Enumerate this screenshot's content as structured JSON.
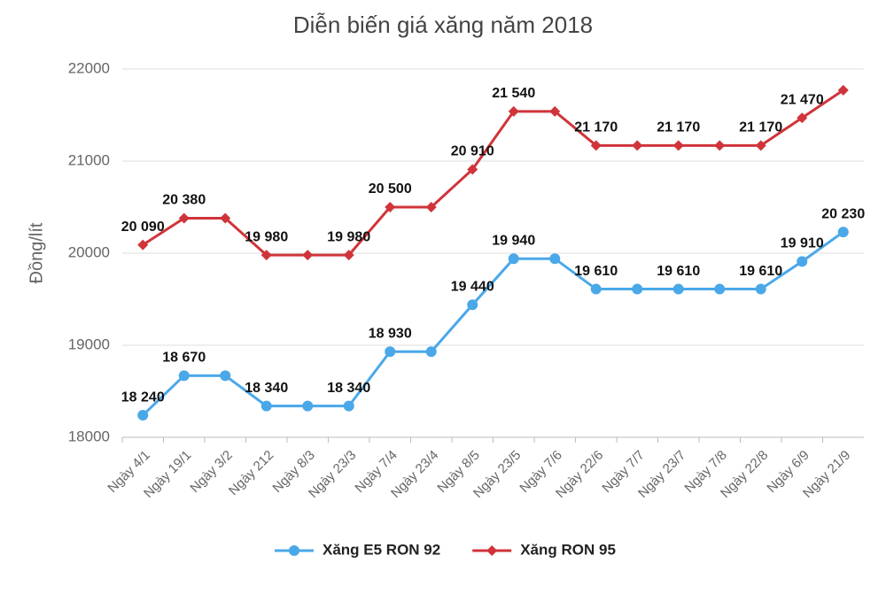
{
  "chart_data": {
    "type": "line",
    "title": "Diễn biến giá xăng năm 2018",
    "y_label": "Đồng/lít",
    "categories": [
      "Ngày 4/1",
      "Ngày 19/1",
      "Ngày 3/2",
      "Ngày 212",
      "Ngày 8/3",
      "Ngày 23/3",
      "Ngày 7/4",
      "Ngày 23/4",
      "Ngày 8/5",
      "Ngày 23/5",
      "Ngày 7/6",
      "Ngày 22/6",
      "Ngày 7/7",
      "Ngày 23/7",
      "Ngày 7/8",
      "Ngày 22/8",
      "Ngày 6/9",
      "Ngày 21/9"
    ],
    "series": [
      {
        "name": "Xăng E5 RON 92",
        "color": "#4aa8e8",
        "marker": "circle",
        "values": [
          18240,
          18670,
          18670,
          18340,
          18340,
          18340,
          18930,
          18930,
          19440,
          19940,
          19940,
          19610,
          19610,
          19610,
          19610,
          19610,
          19910,
          20230
        ],
        "value_labels": [
          "18 240",
          "18 670",
          null,
          "18 340",
          null,
          "18 340",
          "18 930",
          null,
          "19 440",
          "19 940",
          null,
          "19 610",
          null,
          "19 610",
          null,
          "19 610",
          "19 910",
          "20 230"
        ]
      },
      {
        "name": "Xăng RON 95",
        "color": "#d0343a",
        "marker": "diamond",
        "values": [
          20090,
          20380,
          20380,
          19980,
          19980,
          19980,
          20500,
          20500,
          20910,
          21540,
          21540,
          21170,
          21170,
          21170,
          21170,
          21170,
          21470,
          21770
        ],
        "value_labels": [
          "20 090",
          "20 380",
          null,
          "19 980",
          null,
          "19 980",
          "20 500",
          null,
          "20 910",
          "21 540",
          null,
          "21 170",
          null,
          "21 170",
          null,
          "21 170",
          "21 470",
          null
        ]
      }
    ],
    "ylim": [
      18000,
      22000
    ],
    "yticks": [
      18000,
      19000,
      20000,
      21000,
      22000
    ],
    "grid": true,
    "legend": "bottom"
  }
}
